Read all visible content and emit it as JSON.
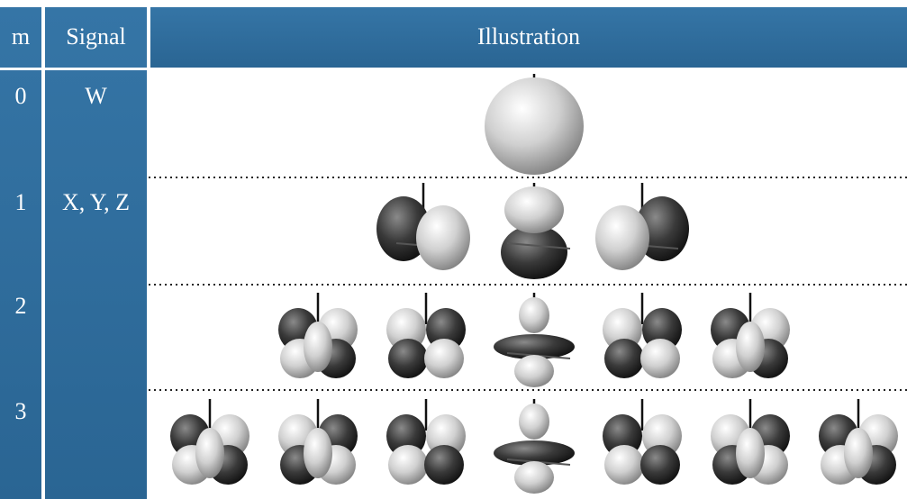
{
  "header": {
    "m": "m",
    "signal": "Signal",
    "illustration": "Illustration"
  },
  "rows": [
    {
      "m": "0",
      "signal": "W"
    },
    {
      "m": "1",
      "signal": "X, Y, Z"
    },
    {
      "m": "2"
    },
    {
      "m": "3"
    }
  ]
}
